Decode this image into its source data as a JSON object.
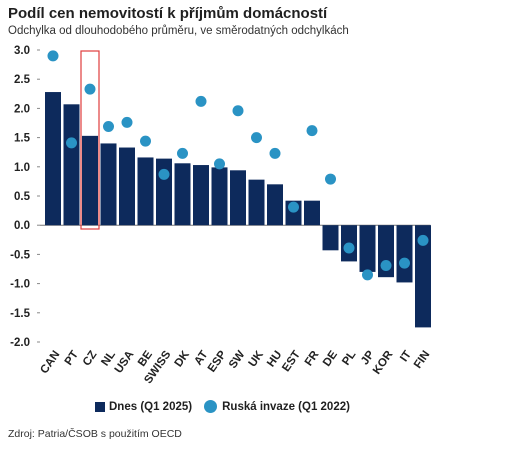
{
  "chart_data": {
    "type": "bar",
    "title": "Podíl cen nemovitostí k příjmům domácností",
    "subtitle": "Odchylka od dlouhodobého průměru, ve směrodatných odchylkách",
    "categories": [
      "CAN",
      "PT",
      "CZ",
      "NL",
      "USA",
      "BE",
      "SWISS",
      "DK",
      "AT",
      "ESP",
      "SW",
      "UK",
      "HU",
      "EST",
      "FR",
      "DE",
      "PL",
      "JP",
      "KOR",
      "IT",
      "FIN"
    ],
    "series": [
      {
        "name": "Dnes (Q1 2025)",
        "kind": "bar",
        "color": "#0d2a5c",
        "values": [
          2.28,
          2.07,
          1.53,
          1.4,
          1.33,
          1.16,
          1.14,
          1.06,
          1.03,
          0.99,
          0.94,
          0.78,
          0.7,
          0.42,
          0.42,
          -0.43,
          -0.62,
          -0.8,
          -0.89,
          -0.98,
          -1.75
        ]
      },
      {
        "name": "Ruská invaze (Q1 2022)",
        "kind": "dot",
        "color": "#2a93c4",
        "values": [
          2.9,
          1.41,
          2.33,
          1.69,
          1.76,
          1.44,
          0.87,
          1.23,
          2.12,
          1.05,
          1.96,
          1.5,
          1.23,
          0.31,
          1.62,
          0.79,
          -0.39,
          -0.85,
          -0.69,
          -0.65,
          -0.26
        ]
      }
    ],
    "highlight_category": "CZ",
    "highlight_color": "#e03c3c",
    "ylim": [
      -2.0,
      3.0
    ],
    "yticks": [
      "3.0",
      "2.5",
      "2.0",
      "1.5",
      "1.0",
      "0.5",
      "0.0",
      "-0.5",
      "-1.0",
      "-1.5",
      "-2.0"
    ],
    "legend_position": "bottom",
    "grid": false
  },
  "source": "Zdroj: Patria/ČSOB s použitím OECD"
}
